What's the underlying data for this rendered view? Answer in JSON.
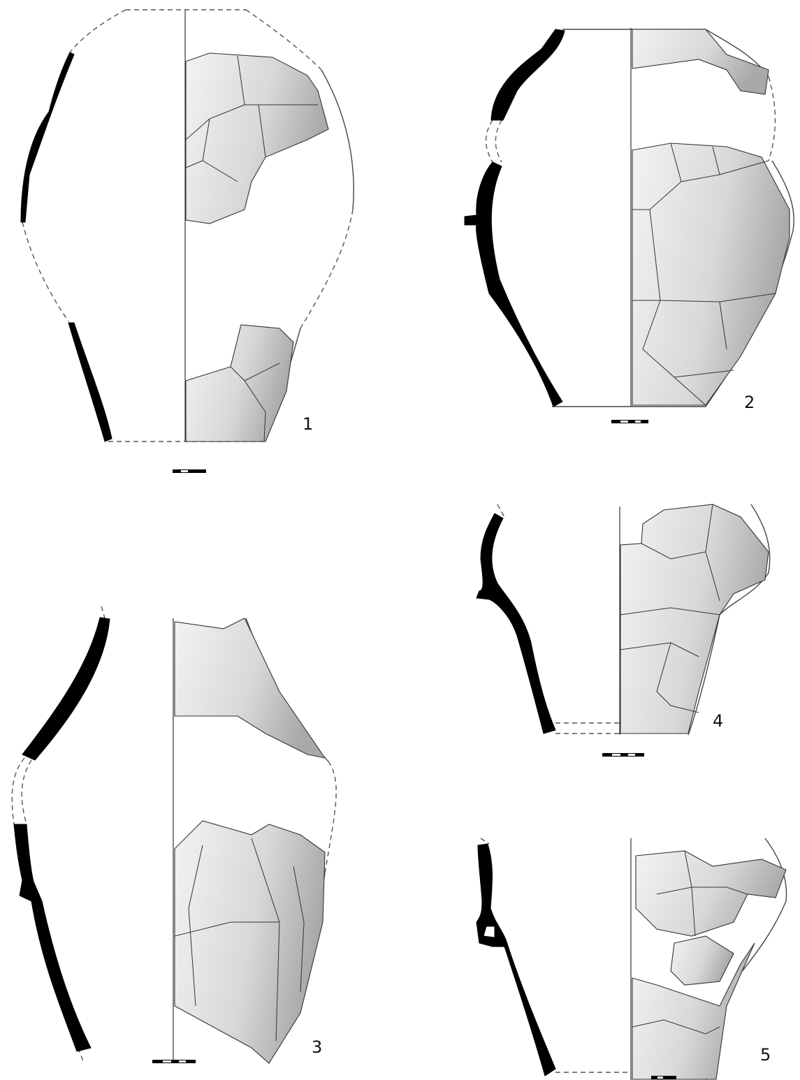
{
  "figures": [
    {
      "label": "1"
    },
    {
      "label": "2"
    },
    {
      "label": "3"
    },
    {
      "label": "4"
    },
    {
      "label": "5"
    }
  ]
}
